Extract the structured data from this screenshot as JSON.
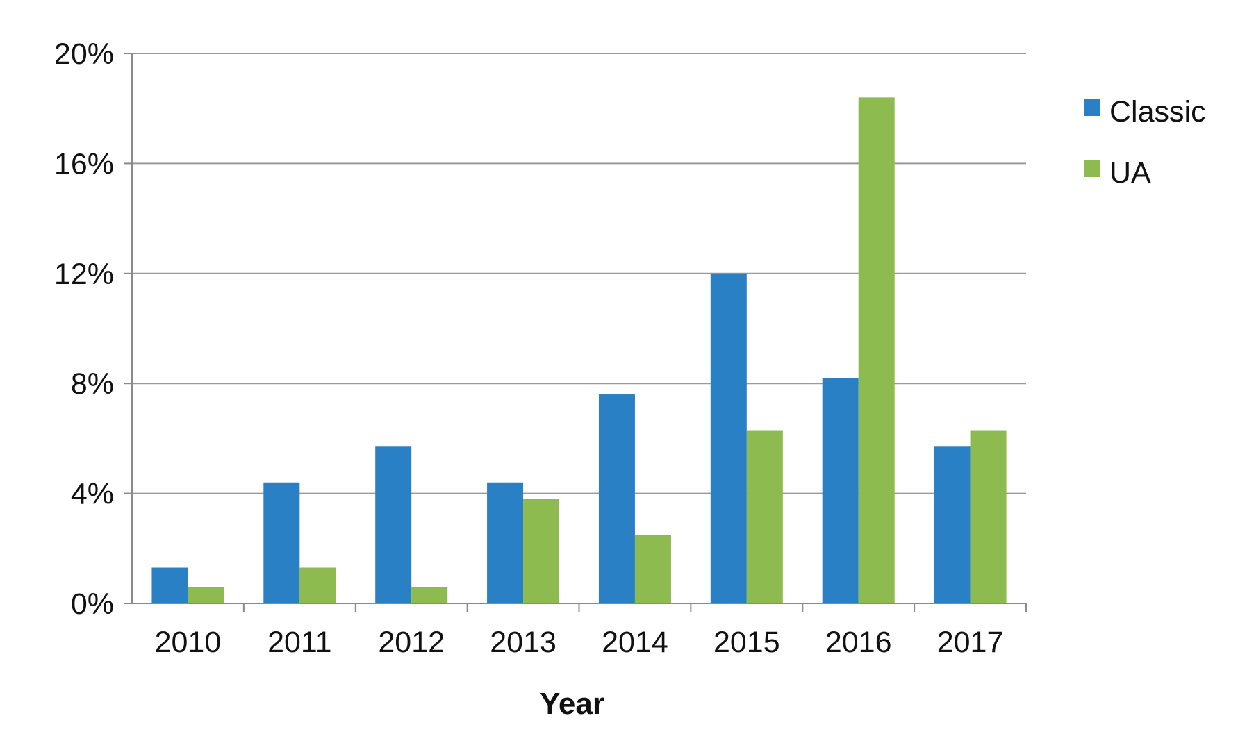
{
  "colors": {
    "Classic": "#2a80c4",
    "UA": "#8dbb4f",
    "grid": "#9a9a9a",
    "axis": "#8a8a8a"
  },
  "chart_data": {
    "type": "bar",
    "title": "",
    "xlabel": "Year",
    "ylabel": "",
    "categories": [
      "2010",
      "2011",
      "2012",
      "2013",
      "2014",
      "2015",
      "2016",
      "2017"
    ],
    "series": [
      {
        "name": "Classic",
        "values": [
          1.3,
          4.4,
          5.7,
          4.4,
          7.6,
          12.0,
          8.2,
          5.7
        ]
      },
      {
        "name": "UA",
        "values": [
          0.6,
          1.3,
          0.6,
          3.8,
          2.5,
          6.3,
          18.4,
          6.3
        ]
      }
    ],
    "ylim": [
      0,
      20
    ],
    "yticks": [
      {
        "value": 0,
        "label": "0%"
      },
      {
        "value": 4,
        "label": "4%"
      },
      {
        "value": 8,
        "label": "8%"
      },
      {
        "value": 12,
        "label": "12%"
      },
      {
        "value": 16,
        "label": "16%"
      },
      {
        "value": 20,
        "label": "20%"
      }
    ],
    "grid": true,
    "legend_position": "right"
  }
}
